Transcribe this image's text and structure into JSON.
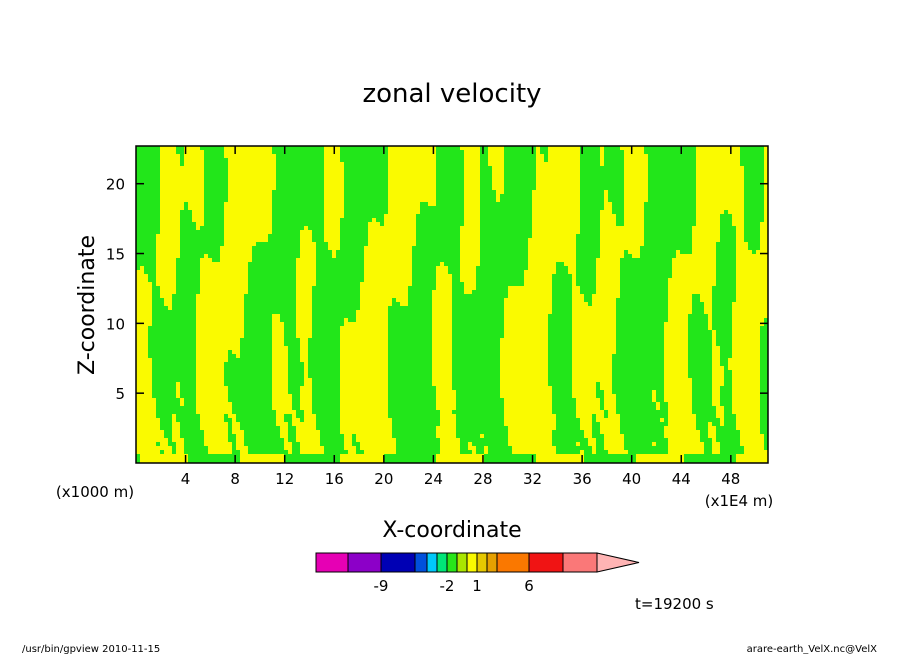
{
  "chart_data": {
    "type": "heatmap",
    "title": "zonal velocity",
    "xlabel": "X-coordinate",
    "ylabel": "Z-coordinate",
    "x_unit_label": "(x1E4 m)",
    "y_unit_label": "(x1000 m)",
    "xlim": [
      0,
      51
    ],
    "ylim": [
      0,
      22.7
    ],
    "x_ticks": [
      4,
      8,
      12,
      16,
      20,
      24,
      28,
      32,
      36,
      40,
      44,
      48
    ],
    "y_ticks": [
      5,
      10,
      15,
      20
    ],
    "field_levels": [
      {
        "range": [
          -1,
          0
        ],
        "color": "#22e61a"
      },
      {
        "range": [
          0,
          1
        ],
        "color": "#fafa00"
      }
    ],
    "colorbar": {
      "colors": [
        "#e600b4",
        "#8c00c8",
        "#0000b4",
        "#0050dc",
        "#00c8fa",
        "#00e678",
        "#28e61a",
        "#aae600",
        "#fafa00",
        "#e6c800",
        "#e6a000",
        "#fa7800",
        "#f01414",
        "#fa7878",
        "#ffb4b4"
      ],
      "tick_labels": [
        {
          "label": "-9",
          "after_box": 1
        },
        {
          "label": "-2",
          "after_box": 5
        },
        {
          "label": "1",
          "after_box": 8
        },
        {
          "label": "6",
          "after_box": 11
        }
      ]
    },
    "grid": false,
    "legend": "colorbar below plot"
  },
  "annotations": {
    "time": "t=19200 s",
    "footer_left": "/usr/bin/gpview  2010-11-15",
    "footer_right": "arare-earth_VelX.nc@VelX"
  },
  "colors": {
    "contour_line": "#404060",
    "frame": "#000000"
  }
}
